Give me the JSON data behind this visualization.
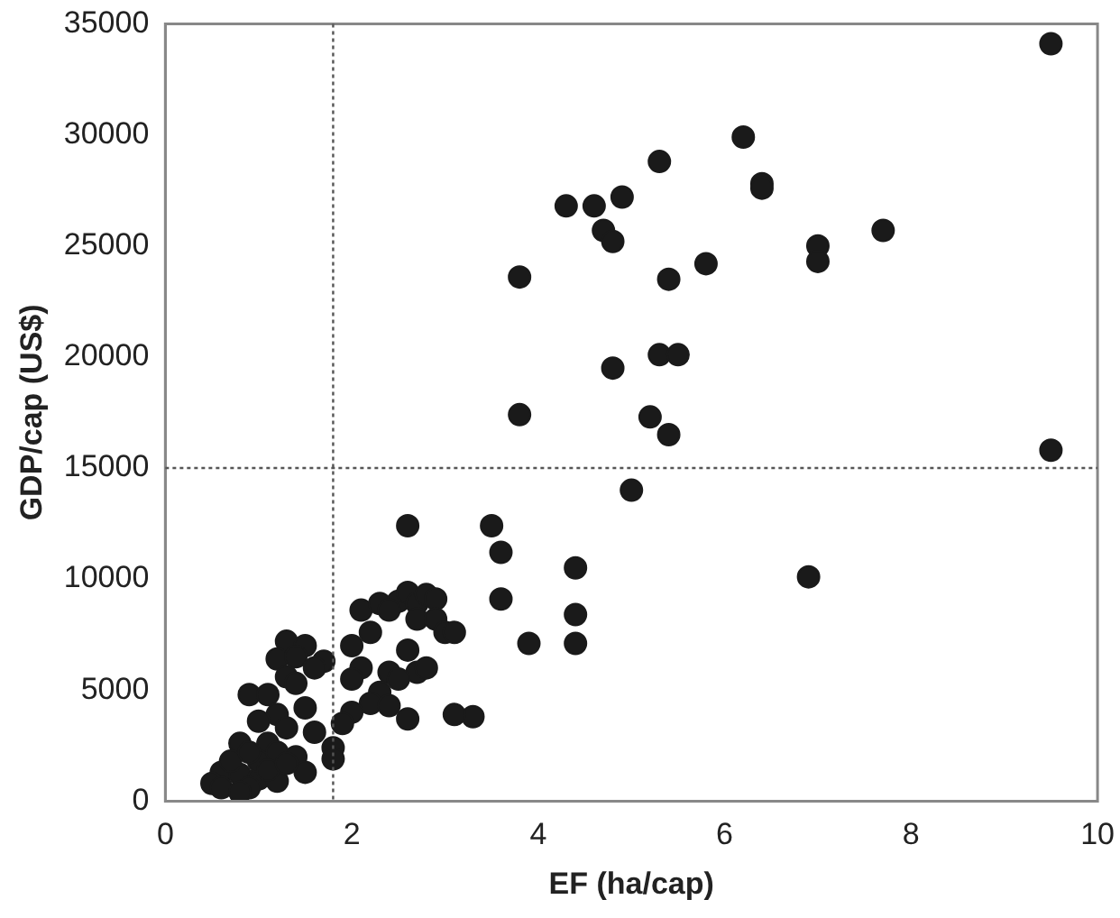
{
  "chart_data": {
    "type": "scatter",
    "xlabel": "EF (ha/cap)",
    "ylabel": "GDP/cap (US$)",
    "xlim": [
      0,
      10
    ],
    "xticks": [
      0,
      2,
      4,
      6,
      8,
      10
    ],
    "ylim": [
      0,
      35000
    ],
    "yticks": [
      0,
      5000,
      10000,
      15000,
      20000,
      25000,
      30000,
      35000
    ],
    "grid": false,
    "legend": false,
    "marker": "circle",
    "ref_lines": [
      {
        "axis": "x",
        "value": 1.8,
        "line_style": "dotted",
        "color": "#555555"
      },
      {
        "axis": "y",
        "value": 15000,
        "line_style": "dotted",
        "color": "#555555"
      }
    ],
    "series": [
      {
        "color": "#1a1a1a",
        "x": [
          9.5,
          6.2,
          5.3,
          6.4,
          6.4,
          4.3,
          4.6,
          4.9,
          4.7,
          4.8,
          7.7,
          7.0,
          7.0,
          5.8,
          3.8,
          5.4,
          4.8,
          5.3,
          5.5,
          3.8,
          5.2,
          5.4,
          9.5,
          2.6,
          3.5,
          3.6,
          4.4,
          6.9,
          5.0,
          3.6,
          4.4,
          3.9,
          4.4,
          3.3,
          3.1,
          2.6,
          2.1,
          2.3,
          2.5,
          2.6,
          2.7,
          2.8,
          2.9,
          2.4,
          2.7,
          2.9,
          3.0,
          3.1,
          2.0,
          2.2,
          2.1,
          2.4,
          2.6,
          2.7,
          2.8,
          2.3,
          2.2,
          2.4,
          2.0,
          1.9,
          1.8,
          1.8,
          2.0,
          2.5,
          1.3,
          1.5,
          1.7,
          1.2,
          1.4,
          1.6,
          1.3,
          1.4,
          0.9,
          1.1,
          1.5,
          1.2,
          1.0,
          1.3,
          0.8,
          1.1,
          1.4,
          0.6,
          0.8,
          1.0,
          0.5,
          0.9,
          1.2,
          1.5,
          1.6,
          1.0,
          1.2,
          0.7,
          0.9,
          1.1,
          0.6,
          0.8,
          1.3
        ],
        "values": [
          34100,
          29900,
          28800,
          27800,
          27600,
          26800,
          26800,
          27200,
          25700,
          25200,
          25700,
          25000,
          24300,
          24200,
          23600,
          23500,
          19500,
          20100,
          20100,
          17400,
          17300,
          16500,
          15800,
          12400,
          12400,
          11200,
          10500,
          10100,
          14000,
          9100,
          8400,
          7100,
          7100,
          3800,
          3900,
          3700,
          8600,
          8900,
          9000,
          9400,
          8900,
          9300,
          9100,
          8600,
          8200,
          8200,
          7600,
          7600,
          7000,
          7600,
          6000,
          5800,
          6800,
          5800,
          6000,
          4900,
          4400,
          4300,
          4000,
          3500,
          2400,
          1900,
          5500,
          5500,
          7200,
          7000,
          6300,
          6400,
          6500,
          6000,
          5600,
          5300,
          4800,
          4800,
          4200,
          3900,
          3600,
          3300,
          2600,
          2600,
          2000,
          1300,
          1200,
          1000,
          800,
          600,
          900,
          1300,
          3100,
          1800,
          2200,
          1800,
          2200,
          1400,
          600,
          400,
          1700
        ]
      }
    ]
  }
}
